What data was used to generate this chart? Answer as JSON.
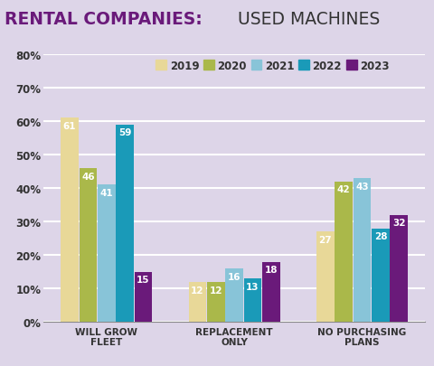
{
  "title_bold": "RENTAL COMPANIES:",
  "title_regular": " USED MACHINES",
  "background_color": "#ddd5e8",
  "categories": [
    "WILL GROW\nFLEET",
    "REPLACEMENT\nONLY",
    "NO PURCHASING\nPLANS"
  ],
  "years": [
    "2019",
    "2020",
    "2021",
    "2022",
    "2023"
  ],
  "colors": [
    "#e8d898",
    "#aab84a",
    "#88c4d8",
    "#1a9ab8",
    "#6a1a7a"
  ],
  "values": [
    [
      61,
      46,
      41,
      59,
      15
    ],
    [
      12,
      12,
      16,
      13,
      18
    ],
    [
      27,
      42,
      43,
      28,
      32
    ]
  ],
  "ylim": [
    0,
    80
  ],
  "yticks": [
    0,
    10,
    20,
    30,
    40,
    50,
    60,
    70,
    80
  ],
  "grid_color": "#ffffff",
  "bar_label_color": "#ffffff",
  "bar_label_fontsize": 7.5,
  "title_bold_color": "#6a1a7a",
  "title_regular_color": "#333333",
  "title_fontsize": 13.5,
  "legend_fontsize": 8.5,
  "axis_label_fontsize": 7.5,
  "axis_tick_fontsize": 8.5,
  "group_width": 0.72
}
